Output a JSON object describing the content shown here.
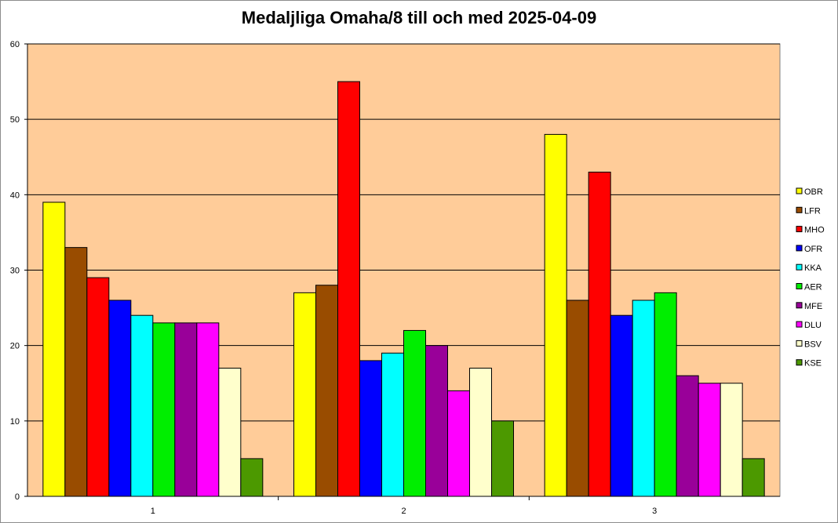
{
  "chart_data": {
    "type": "bar",
    "title": "Medaljliga Omaha/8 till och med 2025-04-09",
    "categories": [
      "1",
      "2",
      "3"
    ],
    "ylim": [
      0,
      60
    ],
    "yticks": [
      0,
      10,
      20,
      30,
      40,
      50,
      60
    ],
    "grid": true,
    "legend_position": "right",
    "plot_background": "#ffcc99",
    "series": [
      {
        "name": "OBR",
        "color": "#ffff00",
        "values": [
          39,
          27,
          48
        ]
      },
      {
        "name": "LFR",
        "color": "#994c00",
        "values": [
          33,
          28,
          26
        ]
      },
      {
        "name": "MHO",
        "color": "#ff0000",
        "values": [
          29,
          55,
          43
        ]
      },
      {
        "name": "OFR",
        "color": "#0000ff",
        "values": [
          26,
          18,
          24
        ]
      },
      {
        "name": "KKA",
        "color": "#00ffff",
        "values": [
          24,
          19,
          26
        ]
      },
      {
        "name": "AER",
        "color": "#00ee00",
        "values": [
          23,
          22,
          27
        ]
      },
      {
        "name": "MFE",
        "color": "#990099",
        "values": [
          23,
          20,
          16
        ]
      },
      {
        "name": "DLU",
        "color": "#ff00ff",
        "values": [
          23,
          14,
          15
        ]
      },
      {
        "name": "BSV",
        "color": "#ffffcc",
        "values": [
          17,
          17,
          15
        ]
      },
      {
        "name": "KSE",
        "color": "#4c9900",
        "values": [
          5,
          10,
          5
        ]
      }
    ]
  }
}
